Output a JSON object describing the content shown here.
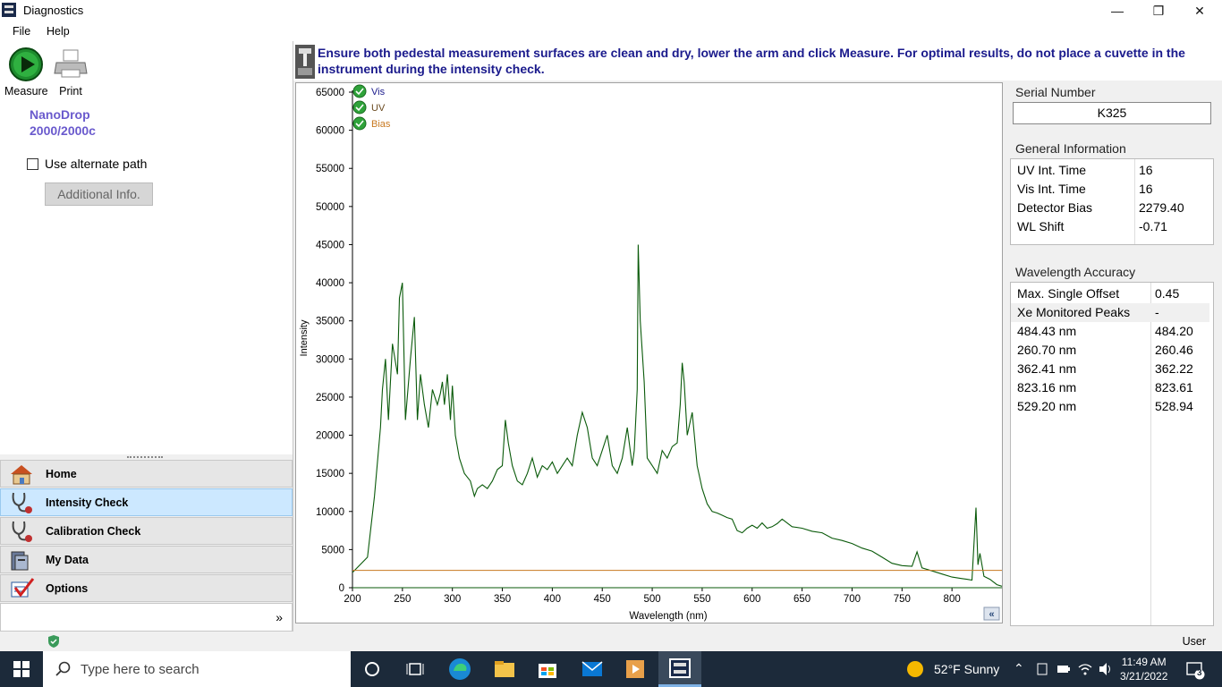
{
  "window": {
    "title": "Diagnostics"
  },
  "menu": {
    "items": [
      "File",
      "Help"
    ]
  },
  "toolbar": {
    "measure_label": "Measure",
    "print_label": "Print"
  },
  "brand": {
    "line1": "NanoDrop",
    "line2": "2000/2000c"
  },
  "options": {
    "alternate_path_label": "Use alternate path",
    "alternate_path_checked": false,
    "additional_info_label": "Additional Info."
  },
  "nav": {
    "items": [
      {
        "label": "Home",
        "icon": "home-icon"
      },
      {
        "label": "Intensity Check",
        "icon": "stethoscope-icon",
        "active": true
      },
      {
        "label": "Calibration Check",
        "icon": "stethoscope-icon"
      },
      {
        "label": "My Data",
        "icon": "data-folder-icon"
      },
      {
        "label": "Options",
        "icon": "options-checkmark-icon"
      }
    ],
    "expand_symbol": "»"
  },
  "instruction": "Ensure both pedestal measurement surfaces are clean and dry, lower the arm and click Measure.  For optimal results, do not place a cuvette in the instrument during the intensity check.",
  "chart_data": {
    "type": "line",
    "xlabel": "Wavelength (nm)",
    "ylabel": "Intensity",
    "xlim": [
      200,
      850
    ],
    "ylim": [
      0,
      65000
    ],
    "xticks": [
      200,
      250,
      300,
      350,
      400,
      450,
      500,
      550,
      600,
      650,
      700,
      750,
      800
    ],
    "yticks": [
      0,
      5000,
      10000,
      15000,
      20000,
      25000,
      30000,
      35000,
      40000,
      45000,
      50000,
      55000,
      60000,
      65000
    ],
    "legend": [
      "Vis",
      "UV",
      "Bias"
    ],
    "series": [
      {
        "name": "Vis",
        "color": "#0a5a0a",
        "x": [
          200,
          215,
          222,
          228,
          230,
          233,
          236,
          240,
          245,
          247,
          250,
          253,
          258,
          262,
          265,
          268,
          272,
          276,
          280,
          285,
          288,
          290,
          292,
          295,
          298,
          300,
          303,
          307,
          312,
          318,
          322,
          325,
          330,
          335,
          340,
          345,
          350,
          353,
          356,
          360,
          365,
          370,
          375,
          380,
          385,
          390,
          395,
          400,
          405,
          410,
          415,
          420,
          425,
          430,
          435,
          440,
          445,
          450,
          455,
          460,
          465,
          470,
          475,
          480,
          482,
          485,
          486,
          488,
          490,
          492,
          495,
          500,
          505,
          510,
          515,
          520,
          525,
          528,
          530,
          532,
          535,
          540,
          545,
          550,
          555,
          560,
          565,
          570,
          575,
          580,
          585,
          590,
          595,
          600,
          605,
          610,
          615,
          620,
          625,
          630,
          640,
          650,
          660,
          670,
          680,
          690,
          700,
          710,
          720,
          730,
          740,
          750,
          760,
          765,
          770,
          780,
          790,
          800,
          810,
          815,
          820,
          824,
          826,
          828,
          832,
          838,
          845,
          850
        ],
        "y": [
          2000,
          4000,
          12000,
          21000,
          26000,
          30000,
          22000,
          32000,
          28000,
          38000,
          40000,
          22000,
          30000,
          35500,
          22000,
          28000,
          24000,
          21000,
          26000,
          24000,
          25500,
          27000,
          24000,
          28000,
          22000,
          26500,
          20000,
          17000,
          15000,
          14000,
          12000,
          13000,
          13500,
          13000,
          14000,
          15500,
          16000,
          22000,
          19000,
          16000,
          14000,
          13500,
          15000,
          17000,
          14500,
          16000,
          15500,
          16500,
          15000,
          16000,
          17000,
          16000,
          20000,
          23000,
          21000,
          17000,
          16000,
          18000,
          20000,
          16000,
          15000,
          17000,
          21000,
          16000,
          18000,
          26000,
          45000,
          35000,
          31000,
          27000,
          17000,
          16000,
          15000,
          18000,
          17000,
          18500,
          19000,
          24000,
          29500,
          27000,
          20000,
          23000,
          16000,
          13000,
          11000,
          10000,
          9800,
          9500,
          9200,
          9000,
          7500,
          7200,
          7800,
          8200,
          7800,
          8500,
          7800,
          8000,
          8400,
          9000,
          8000,
          7800,
          7400,
          7200,
          6500,
          6200,
          5800,
          5200,
          4800,
          4000,
          3200,
          2900,
          2800,
          4700,
          2600,
          2200,
          1800,
          1400,
          1200,
          1100,
          1000,
          10500,
          3000,
          4500,
          1500,
          1100,
          400,
          200
        ]
      },
      {
        "name": "UV",
        "color": "#0a5a0a",
        "x": [
          200,
          850
        ],
        "y": [
          0,
          0
        ]
      },
      {
        "name": "Bias",
        "color": "#c87820",
        "x": [
          200,
          850
        ],
        "y": [
          2279.4,
          2279.4
        ]
      }
    ]
  },
  "serial": {
    "label": "Serial Number",
    "value": "K325"
  },
  "general": {
    "label": "General Information",
    "rows": [
      {
        "name": "UV Int. Time",
        "value": "16"
      },
      {
        "name": "Vis Int. Time",
        "value": "16"
      },
      {
        "name": "Detector Bias",
        "value": "2279.40"
      },
      {
        "name": "WL Shift",
        "value": "-0.71"
      }
    ]
  },
  "wavelength": {
    "label": "Wavelength Accuracy",
    "rows": [
      {
        "name": "Max. Single Offset",
        "value": "0.45"
      },
      {
        "name": "Xe Monitored Peaks",
        "value": "-"
      },
      {
        "name": "484.43 nm",
        "value": "484.20"
      },
      {
        "name": "260.70 nm",
        "value": "260.46"
      },
      {
        "name": "362.41 nm",
        "value": "362.22"
      },
      {
        "name": "823.16 nm",
        "value": "823.61"
      },
      {
        "name": "529.20 nm",
        "value": "528.94"
      }
    ]
  },
  "status": {
    "user": "User"
  },
  "taskbar": {
    "search_placeholder": "Type here to search",
    "weather": "52°F  Sunny",
    "time": "11:49 AM",
    "date": "3/21/2022",
    "notifications": "3"
  }
}
